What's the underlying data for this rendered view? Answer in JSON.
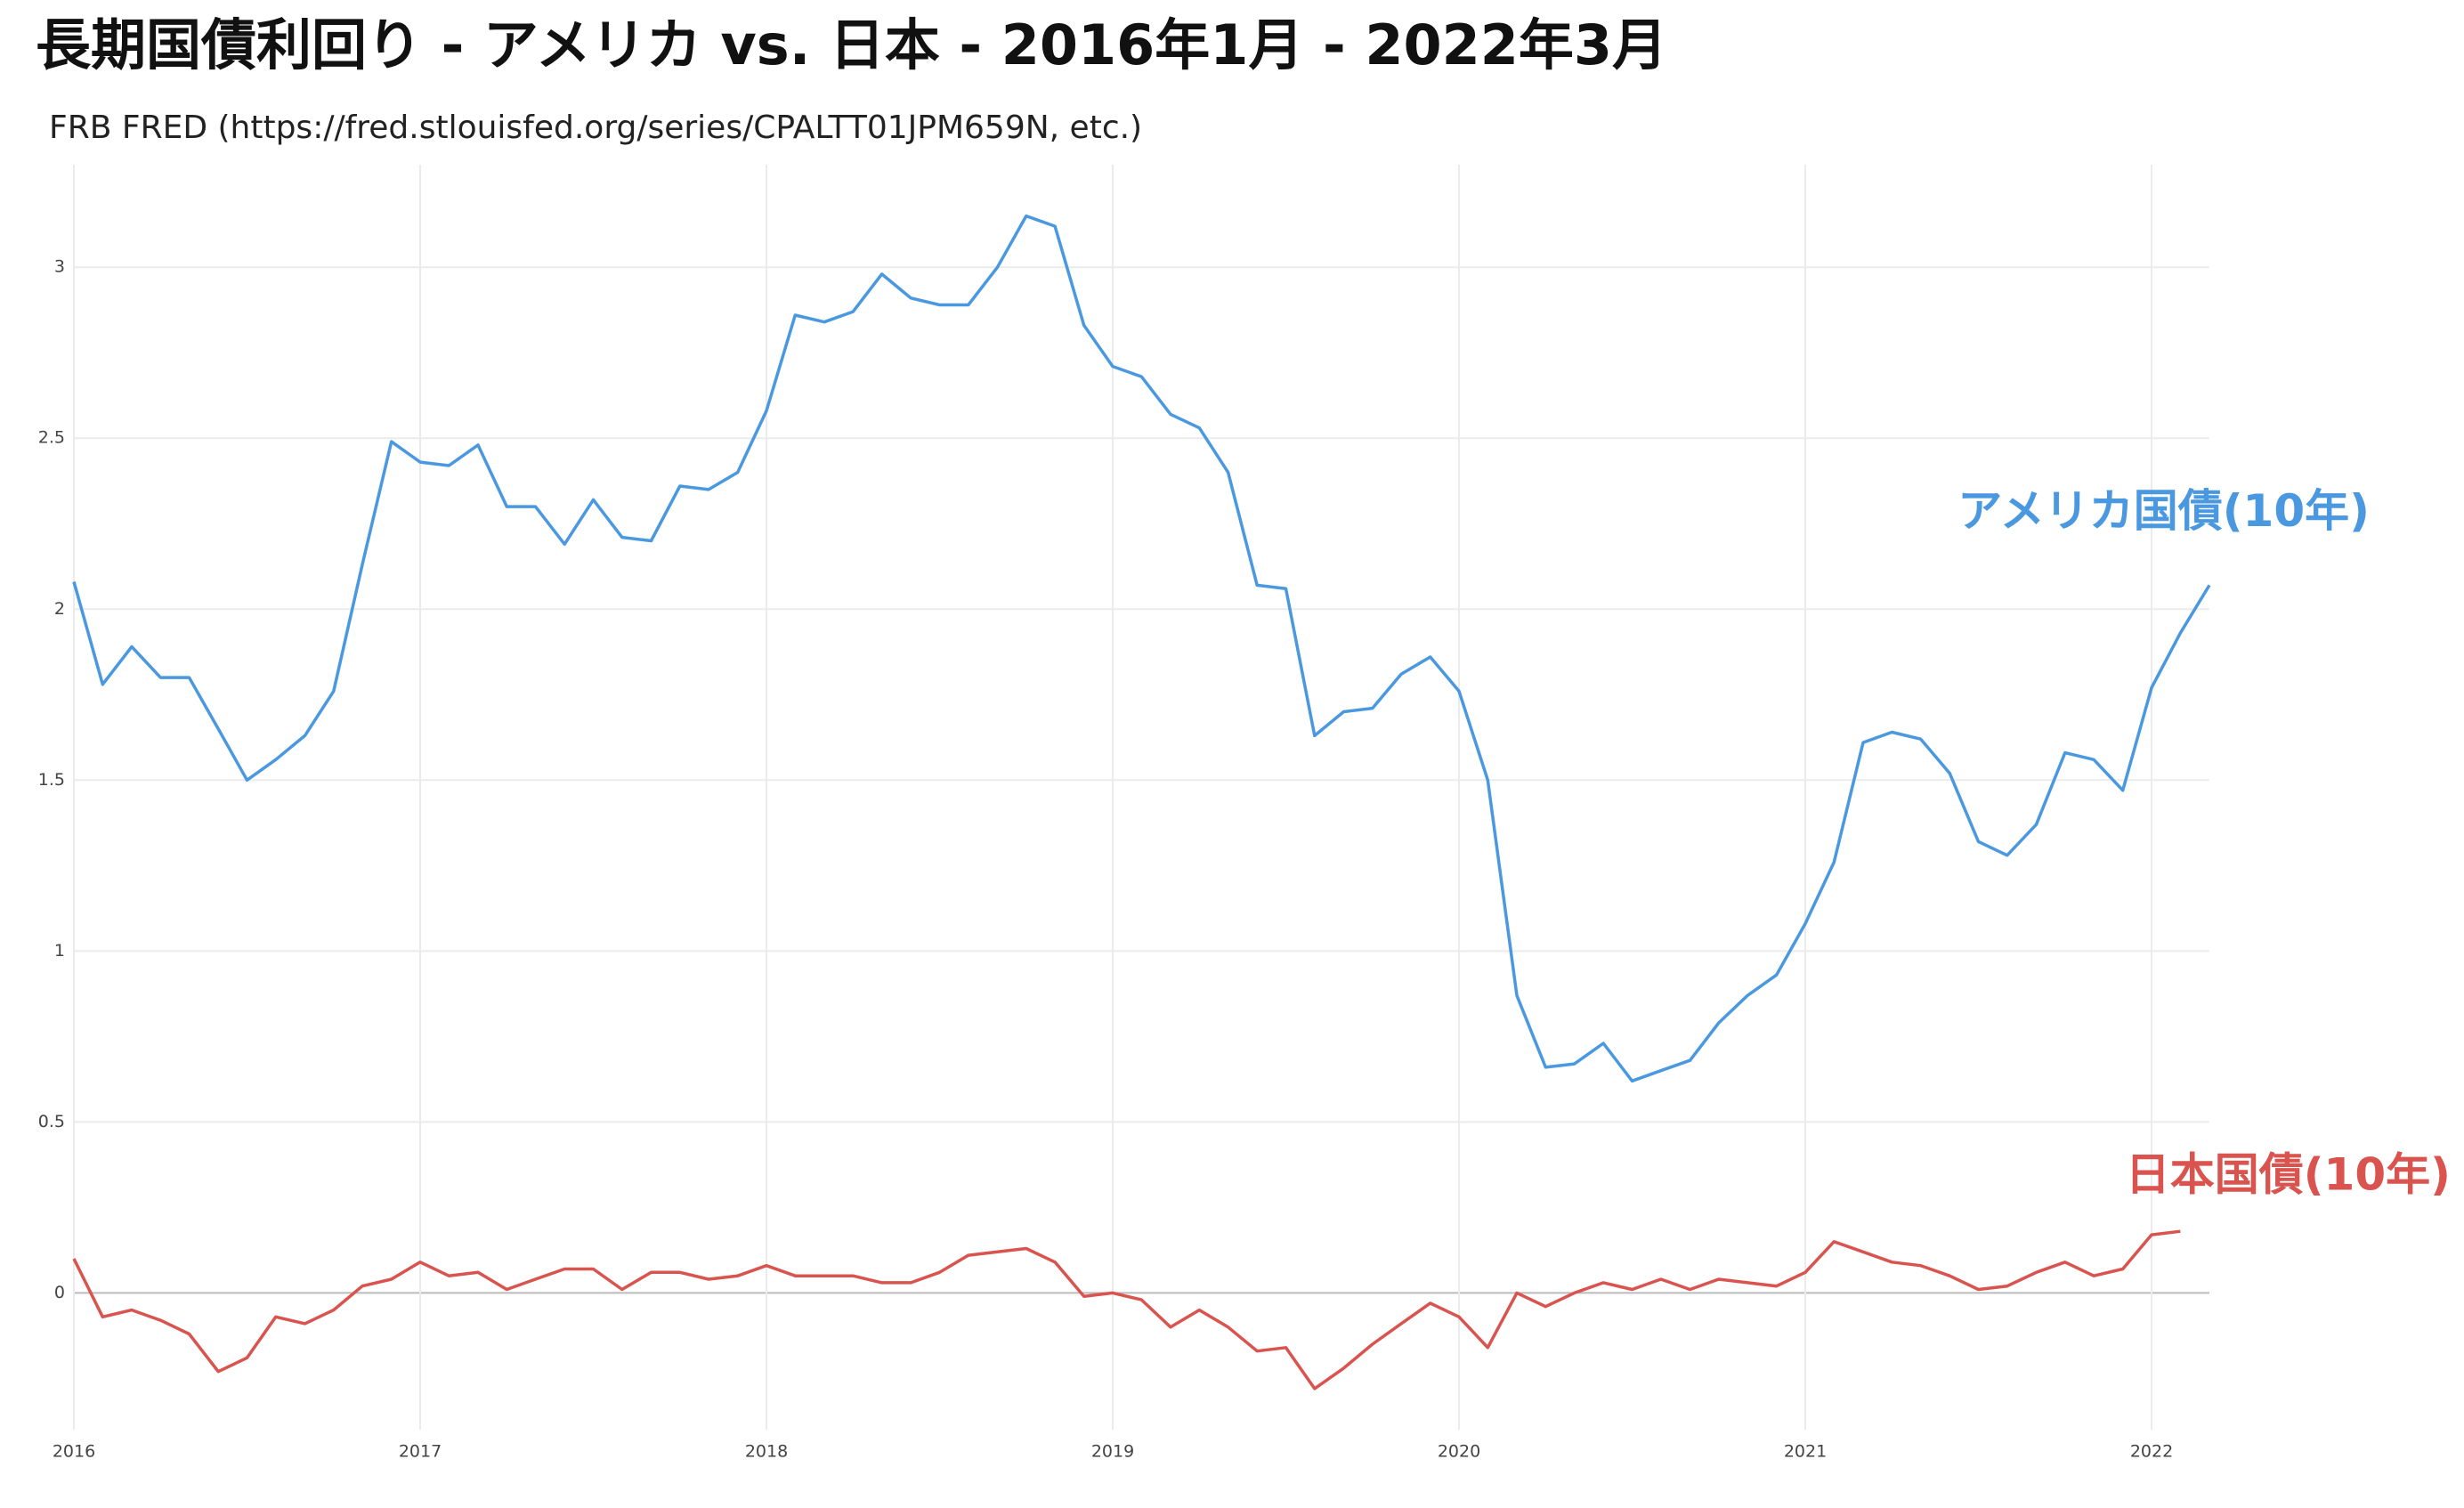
{
  "chart_data": {
    "type": "line",
    "title": "長期国債利回り - アメリカ vs. 日本 - 2016年1月 - 2022年3月",
    "subtitle": "FRB FRED (https://fred.stlouisfed.org/series/CPALTT01JPM659N, etc.)",
    "x": [
      2016,
      2016.083,
      2016.167,
      2016.25,
      2016.333,
      2016.417,
      2016.5,
      2016.583,
      2016.667,
      2016.75,
      2016.833,
      2016.917,
      2017,
      2017.083,
      2017.167,
      2017.25,
      2017.333,
      2017.417,
      2017.5,
      2017.583,
      2017.667,
      2017.75,
      2017.833,
      2017.917,
      2018,
      2018.083,
      2018.167,
      2018.25,
      2018.333,
      2018.417,
      2018.5,
      2018.583,
      2018.667,
      2018.75,
      2018.833,
      2018.917,
      2019,
      2019.083,
      2019.167,
      2019.25,
      2019.333,
      2019.417,
      2019.5,
      2019.583,
      2019.667,
      2019.75,
      2019.833,
      2019.917,
      2020,
      2020.083,
      2020.167,
      2020.25,
      2020.333,
      2020.417,
      2020.5,
      2020.583,
      2020.667,
      2020.75,
      2020.833,
      2020.917,
      2021,
      2021.083,
      2021.167,
      2021.25,
      2021.333,
      2021.417,
      2021.5,
      2021.583,
      2021.667,
      2021.75,
      2021.833,
      2021.917,
      2022,
      2022.083,
      2022.167
    ],
    "series": [
      {
        "name": "アメリカ国債(10年)",
        "color": "#4a98e0",
        "values": [
          2.08,
          1.78,
          1.89,
          1.8,
          1.8,
          1.65,
          1.5,
          1.56,
          1.63,
          1.76,
          2.13,
          2.49,
          2.43,
          2.42,
          2.48,
          2.3,
          2.3,
          2.19,
          2.32,
          2.21,
          2.2,
          2.36,
          2.35,
          2.4,
          2.58,
          2.86,
          2.84,
          2.87,
          2.98,
          2.91,
          2.89,
          2.89,
          3.0,
          3.15,
          3.12,
          2.83,
          2.71,
          2.68,
          2.57,
          2.53,
          2.4,
          2.07,
          2.06,
          1.63,
          1.7,
          1.71,
          1.81,
          1.86,
          1.76,
          1.5,
          0.87,
          0.66,
          0.67,
          0.73,
          0.62,
          0.65,
          0.68,
          0.79,
          0.87,
          0.93,
          1.08,
          1.26,
          1.61,
          1.64,
          1.62,
          1.52,
          1.32,
          1.28,
          1.37,
          1.58,
          1.56,
          1.47,
          1.77,
          1.93,
          2.07
        ]
      },
      {
        "name": "日本国債(10年)",
        "color": "#d9534f",
        "values": [
          0.1,
          -0.07,
          -0.05,
          -0.08,
          -0.12,
          -0.23,
          -0.19,
          -0.07,
          -0.09,
          -0.05,
          0.02,
          0.04,
          0.09,
          0.05,
          0.06,
          0.01,
          0.04,
          0.07,
          0.07,
          0.01,
          0.06,
          0.06,
          0.04,
          0.05,
          0.08,
          0.05,
          0.05,
          0.05,
          0.03,
          0.03,
          0.06,
          0.11,
          0.12,
          0.13,
          0.09,
          -0.01,
          0.0,
          -0.02,
          -0.1,
          -0.05,
          -0.1,
          -0.17,
          -0.16,
          -0.28,
          -0.22,
          -0.15,
          -0.09,
          -0.03,
          -0.07,
          -0.16,
          0.0,
          -0.04,
          0.0,
          0.03,
          0.01,
          0.04,
          0.01,
          0.04,
          0.03,
          0.02,
          0.06,
          0.15,
          0.12,
          0.09,
          0.08,
          0.05,
          0.01,
          0.02,
          0.06,
          0.09,
          0.05,
          0.07,
          0.17,
          0.18,
          null
        ]
      }
    ],
    "xlim": [
      2016,
      2022.167
    ],
    "xticks": [
      2016,
      2017,
      2018,
      2019,
      2020,
      2021,
      2022
    ],
    "ylim": [
      -0.4,
      3.3
    ],
    "yticks": [
      0,
      0.5,
      1,
      1.5,
      2,
      2.5,
      3
    ],
    "grid": true
  }
}
